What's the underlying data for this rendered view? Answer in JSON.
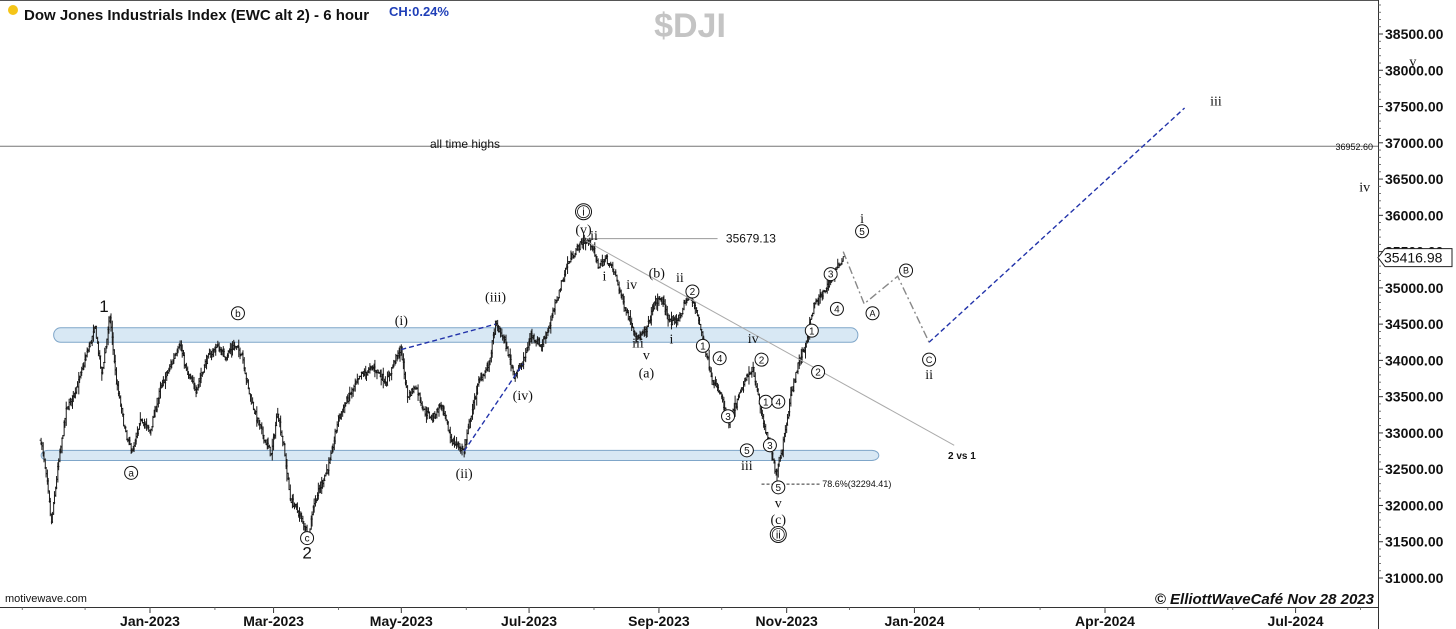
{
  "header": {
    "title": "Dow Jones Industrials Index (EWC alt 2) - 6 hour",
    "change": "CH:0.24%",
    "ticker": "$DJI",
    "dot_color": "#f5c518"
  },
  "watermark": "motivewave.com",
  "credit": "© ElliottWaveCafé Nov 28 2023",
  "chart_data": {
    "type": "line",
    "title": "Dow Jones Industrials Index (EWC alt 2) - 6 hour",
    "y_axis": {
      "side": "right",
      "ticks": [
        "38500.00",
        "38000.00",
        "37500.00",
        "37000.00",
        "36500.00",
        "36000.00",
        "35500.00",
        "35000.00",
        "34500.00",
        "34000.00",
        "33500.00",
        "33000.00",
        "32500.00",
        "32000.00",
        "31500.00",
        "31000.00"
      ],
      "range": [
        30700,
        39100
      ]
    },
    "x_axis": {
      "ticks": [
        "Jan-2023",
        "Mar-2023",
        "May-2023",
        "Jul-2023",
        "Sep-2023",
        "Nov-2023",
        "Jan-2024",
        "Apr-2024",
        "Jul-2024"
      ],
      "range": [
        "2022-11-10",
        "2024-09-04"
      ],
      "tick_dates": [
        "2023-01-01",
        "2023-03-01",
        "2023-05-01",
        "2023-07-01",
        "2023-09-01",
        "2023-11-01",
        "2024-01-01",
        "2024-04-01",
        "2024-07-01"
      ]
    },
    "grid": false,
    "last_price": "35416.98",
    "horizontal_levels": [
      {
        "price": 36952.6,
        "label": "36952.60",
        "color": "#777777"
      },
      {
        "price": 35679.13,
        "label": "35679.13",
        "color": "#999999"
      },
      {
        "price": 32294.41,
        "label": "78.6%(32294.41)",
        "color": "#333333"
      }
    ],
    "zones": [
      {
        "name": "upper band",
        "from": 34250,
        "to": 34450,
        "start": "2022-11-16",
        "end": "2023-12-05"
      },
      {
        "name": "lower band",
        "from": 32620,
        "to": 32760,
        "start": "2022-11-10",
        "end": "2023-12-15"
      }
    ],
    "annotations": [
      "all time highs",
      "2 vs 1"
    ],
    "price_path": [
      {
        "x": "2022-11-10",
        "y": 32900
      },
      {
        "x": "2022-11-13",
        "y": 32300
      },
      {
        "x": "2022-11-15",
        "y": 31750
      },
      {
        "x": "2022-11-18",
        "y": 32500
      },
      {
        "x": "2022-11-22",
        "y": 33300
      },
      {
        "x": "2022-11-28",
        "y": 33700
      },
      {
        "x": "2022-12-02",
        "y": 34100
      },
      {
        "x": "2022-12-06",
        "y": 34450
      },
      {
        "x": "2022-12-09",
        "y": 33800
      },
      {
        "x": "2022-12-13",
        "y": 34600
      },
      {
        "x": "2022-12-16",
        "y": 33700
      },
      {
        "x": "2022-12-21",
        "y": 32900
      },
      {
        "x": "2022-12-24",
        "y": 32750
      },
      {
        "x": "2022-12-28",
        "y": 33200
      },
      {
        "x": "2023-01-01",
        "y": 33000
      },
      {
        "x": "2023-01-06",
        "y": 33600
      },
      {
        "x": "2023-01-12",
        "y": 34000
      },
      {
        "x": "2023-01-15",
        "y": 34250
      },
      {
        "x": "2023-01-19",
        "y": 33800
      },
      {
        "x": "2023-01-23",
        "y": 33600
      },
      {
        "x": "2023-01-28",
        "y": 34000
      },
      {
        "x": "2023-02-02",
        "y": 34200
      },
      {
        "x": "2023-02-06",
        "y": 34050
      },
      {
        "x": "2023-02-10",
        "y": 34200
      },
      {
        "x": "2023-02-14",
        "y": 34100
      },
      {
        "x": "2023-02-17",
        "y": 33600
      },
      {
        "x": "2023-02-21",
        "y": 33200
      },
      {
        "x": "2023-02-25",
        "y": 32900
      },
      {
        "x": "2023-02-28",
        "y": 32700
      },
      {
        "x": "2023-03-03",
        "y": 33300
      },
      {
        "x": "2023-03-06",
        "y": 32800
      },
      {
        "x": "2023-03-09",
        "y": 32100
      },
      {
        "x": "2023-03-13",
        "y": 31900
      },
      {
        "x": "2023-03-16",
        "y": 31700
      },
      {
        "x": "2023-03-18",
        "y": 31600
      },
      {
        "x": "2023-03-20",
        "y": 32000
      },
      {
        "x": "2023-03-24",
        "y": 32300
      },
      {
        "x": "2023-03-28",
        "y": 32600
      },
      {
        "x": "2023-04-01",
        "y": 33200
      },
      {
        "x": "2023-04-06",
        "y": 33500
      },
      {
        "x": "2023-04-12",
        "y": 33800
      },
      {
        "x": "2023-04-18",
        "y": 33900
      },
      {
        "x": "2023-04-24",
        "y": 33700
      },
      {
        "x": "2023-04-28",
        "y": 34000
      },
      {
        "x": "2023-05-01",
        "y": 34150
      },
      {
        "x": "2023-05-04",
        "y": 33500
      },
      {
        "x": "2023-05-08",
        "y": 33650
      },
      {
        "x": "2023-05-12",
        "y": 33300
      },
      {
        "x": "2023-05-16",
        "y": 33200
      },
      {
        "x": "2023-05-20",
        "y": 33400
      },
      {
        "x": "2023-05-25",
        "y": 32900
      },
      {
        "x": "2023-05-29",
        "y": 32800
      },
      {
        "x": "2023-05-31",
        "y": 32750
      },
      {
        "x": "2023-06-03",
        "y": 33200
      },
      {
        "x": "2023-06-07",
        "y": 33700
      },
      {
        "x": "2023-06-12",
        "y": 33950
      },
      {
        "x": "2023-06-15",
        "y": 34500
      },
      {
        "x": "2023-06-19",
        "y": 34300
      },
      {
        "x": "2023-06-24",
        "y": 33800
      },
      {
        "x": "2023-06-28",
        "y": 33950
      },
      {
        "x": "2023-07-02",
        "y": 34350
      },
      {
        "x": "2023-07-07",
        "y": 34200
      },
      {
        "x": "2023-07-11",
        "y": 34500
      },
      {
        "x": "2023-07-15",
        "y": 34900
      },
      {
        "x": "2023-07-19",
        "y": 35300
      },
      {
        "x": "2023-07-23",
        "y": 35500
      },
      {
        "x": "2023-07-27",
        "y": 35650
      },
      {
        "x": "2023-07-31",
        "y": 35600
      },
      {
        "x": "2023-08-03",
        "y": 35300
      },
      {
        "x": "2023-08-07",
        "y": 35400
      },
      {
        "x": "2023-08-11",
        "y": 35200
      },
      {
        "x": "2023-08-15",
        "y": 34800
      },
      {
        "x": "2023-08-19",
        "y": 34500
      },
      {
        "x": "2023-08-22",
        "y": 34300
      },
      {
        "x": "2023-08-26",
        "y": 34400
      },
      {
        "x": "2023-08-30",
        "y": 34800
      },
      {
        "x": "2023-09-02",
        "y": 34850
      },
      {
        "x": "2023-09-07",
        "y": 34500
      },
      {
        "x": "2023-09-11",
        "y": 34600
      },
      {
        "x": "2023-09-15",
        "y": 34900
      },
      {
        "x": "2023-09-19",
        "y": 34700
      },
      {
        "x": "2023-09-22",
        "y": 34300
      },
      {
        "x": "2023-09-27",
        "y": 33700
      },
      {
        "x": "2023-10-01",
        "y": 33500
      },
      {
        "x": "2023-10-04",
        "y": 33100
      },
      {
        "x": "2023-10-08",
        "y": 33400
      },
      {
        "x": "2023-10-12",
        "y": 33700
      },
      {
        "x": "2023-10-16",
        "y": 33900
      },
      {
        "x": "2023-10-19",
        "y": 33400
      },
      {
        "x": "2023-10-23",
        "y": 32900
      },
      {
        "x": "2023-10-27",
        "y": 32450
      },
      {
        "x": "2023-10-30",
        "y": 32800
      },
      {
        "x": "2023-11-03",
        "y": 33500
      },
      {
        "x": "2023-11-07",
        "y": 34000
      },
      {
        "x": "2023-11-10",
        "y": 34200
      },
      {
        "x": "2023-11-14",
        "y": 34750
      },
      {
        "x": "2023-11-18",
        "y": 34900
      },
      {
        "x": "2023-11-22",
        "y": 35100
      },
      {
        "x": "2023-11-28",
        "y": 35416.98
      }
    ],
    "wave_lines": [
      {
        "style": "dashed",
        "color": "#2233aa",
        "points": [
          {
            "x": "2023-05-01",
            "y": 34150
          },
          {
            "x": "2023-06-15",
            "y": 34500
          }
        ]
      },
      {
        "style": "dashed",
        "color": "#2233aa",
        "points": [
          {
            "x": "2023-05-31",
            "y": 32750
          },
          {
            "x": "2023-06-28",
            "y": 33950
          }
        ]
      },
      {
        "style": "solid",
        "color": "#aaaaaa",
        "points": [
          {
            "x": "2023-07-28",
            "y": 35650
          },
          {
            "x": "2024-01-20",
            "y": 32830
          }
        ]
      },
      {
        "style": "dashdot",
        "color": "#888888",
        "points": [
          {
            "x": "2023-11-28",
            "y": 35500
          },
          {
            "x": "2023-12-08",
            "y": 34780
          },
          {
            "x": "2023-12-24",
            "y": 35160
          },
          {
            "x": "2024-01-08",
            "y": 34250
          }
        ]
      },
      {
        "style": "dashed",
        "color": "#2233aa",
        "points": [
          {
            "x": "2024-01-08",
            "y": 34250
          },
          {
            "x": "2024-05-09",
            "y": 37480
          }
        ]
      }
    ],
    "wave_labels": [
      {
        "text": "1",
        "x": "2022-12-10",
        "y": 34750,
        "style": "big"
      },
      {
        "text": "a",
        "x": "2022-12-23",
        "y": 32450,
        "style": "circle"
      },
      {
        "text": "b",
        "x": "2023-02-12",
        "y": 34650,
        "style": "circle"
      },
      {
        "text": "c",
        "x": "2023-03-17",
        "y": 31550,
        "style": "circle"
      },
      {
        "text": "2",
        "x": "2023-03-17",
        "y": 31350,
        "style": "big"
      },
      {
        "text": "(i)",
        "x": "2023-05-01",
        "y": 34560,
        "style": "text"
      },
      {
        "text": "(ii)",
        "x": "2023-05-31",
        "y": 32450,
        "style": "text"
      },
      {
        "text": "(iii)",
        "x": "2023-06-15",
        "y": 34880,
        "style": "text"
      },
      {
        "text": "(iv)",
        "x": "2023-06-28",
        "y": 33520,
        "style": "text"
      },
      {
        "text": "i",
        "x": "2023-07-27",
        "y": 36050,
        "style": "circle-dbl"
      },
      {
        "text": "(v)",
        "x": "2023-07-27",
        "y": 35810,
        "style": "text"
      },
      {
        "text": "ii",
        "x": "2023-08-01",
        "y": 35730,
        "style": "text"
      },
      {
        "text": "i",
        "x": "2023-08-06",
        "y": 35170,
        "style": "text"
      },
      {
        "text": "iv",
        "x": "2023-08-19",
        "y": 35050,
        "style": "text"
      },
      {
        "text": "iii",
        "x": "2023-08-22",
        "y": 34250,
        "style": "text"
      },
      {
        "text": "v",
        "x": "2023-08-26",
        "y": 34080,
        "style": "text"
      },
      {
        "text": "(a)",
        "x": "2023-08-26",
        "y": 33830,
        "style": "text"
      },
      {
        "text": "(b)",
        "x": "2023-08-31",
        "y": 35210,
        "style": "text"
      },
      {
        "text": "ii",
        "x": "2023-09-11",
        "y": 35150,
        "style": "text"
      },
      {
        "text": "i",
        "x": "2023-09-07",
        "y": 34300,
        "style": "text"
      },
      {
        "text": "2",
        "x": "2023-09-17",
        "y": 34950,
        "style": "circle"
      },
      {
        "text": "1",
        "x": "2023-09-22",
        "y": 34200,
        "style": "circle"
      },
      {
        "text": "4",
        "x": "2023-09-30",
        "y": 34030,
        "style": "circle"
      },
      {
        "text": "3",
        "x": "2023-10-04",
        "y": 33230,
        "style": "circle"
      },
      {
        "text": "5",
        "x": "2023-10-13",
        "y": 32760,
        "style": "circle"
      },
      {
        "text": "iii",
        "x": "2023-10-13",
        "y": 32560,
        "style": "text"
      },
      {
        "text": "iv",
        "x": "2023-10-16",
        "y": 34310,
        "style": "text"
      },
      {
        "text": "2",
        "x": "2023-10-20",
        "y": 34010,
        "style": "circle"
      },
      {
        "text": "1",
        "x": "2023-10-22",
        "y": 33430,
        "style": "circle"
      },
      {
        "text": "4",
        "x": "2023-10-28",
        "y": 33430,
        "style": "circle"
      },
      {
        "text": "3",
        "x": "2023-10-24",
        "y": 32830,
        "style": "circle"
      },
      {
        "text": "5",
        "x": "2023-10-28",
        "y": 32250,
        "style": "circle"
      },
      {
        "text": "v",
        "x": "2023-10-28",
        "y": 32040,
        "style": "text"
      },
      {
        "text": "(c)",
        "x": "2023-10-28",
        "y": 31810,
        "style": "text"
      },
      {
        "text": "ii",
        "x": "2023-10-28",
        "y": 31600,
        "style": "circle-dbl"
      },
      {
        "text": "1",
        "x": "2023-11-13",
        "y": 34410,
        "style": "circle"
      },
      {
        "text": "2",
        "x": "2023-11-16",
        "y": 33840,
        "style": "circle"
      },
      {
        "text": "3",
        "x": "2023-11-22",
        "y": 35190,
        "style": "circle"
      },
      {
        "text": "4",
        "x": "2023-11-25",
        "y": 34710,
        "style": "circle"
      },
      {
        "text": "5",
        "x": "2023-12-07",
        "y": 35780,
        "style": "circle"
      },
      {
        "text": "i",
        "x": "2023-12-07",
        "y": 35960,
        "style": "text"
      },
      {
        "text": "A",
        "x": "2023-12-12",
        "y": 34650,
        "style": "circle-sm"
      },
      {
        "text": "B",
        "x": "2023-12-28",
        "y": 35240,
        "style": "circle-sm"
      },
      {
        "text": "C",
        "x": "2024-01-08",
        "y": 34010,
        "style": "circle-sm"
      },
      {
        "text": "ii",
        "x": "2024-01-08",
        "y": 33810,
        "style": "text"
      },
      {
        "text": "iii",
        "x": "2024-05-24",
        "y": 37580,
        "style": "text"
      },
      {
        "text": "iv",
        "x": "2024-08-03",
        "y": 36400,
        "style": "text"
      },
      {
        "text": "v",
        "x": "2024-08-26",
        "y": 38130,
        "style": "text"
      }
    ]
  }
}
